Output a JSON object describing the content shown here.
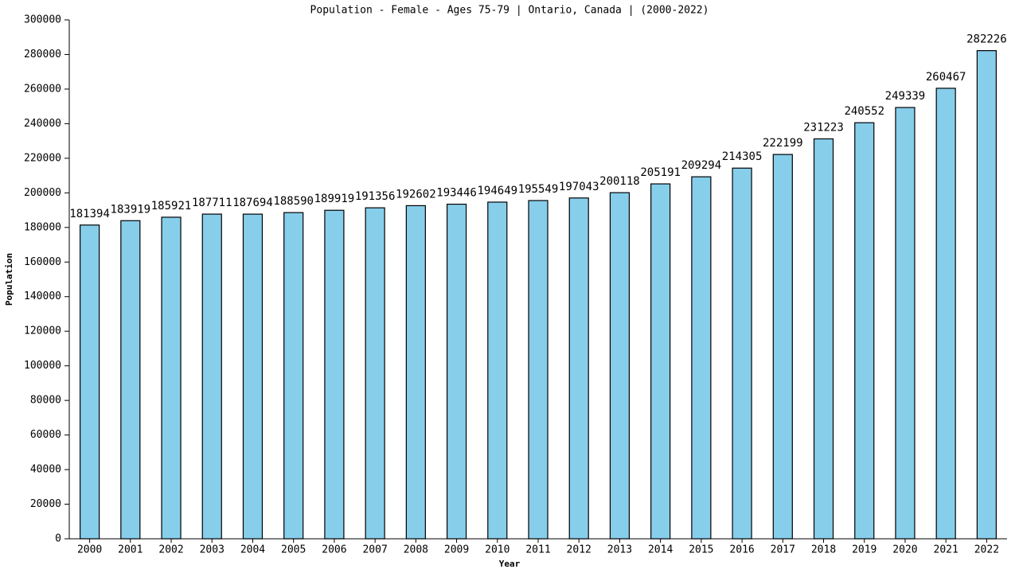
{
  "chart_data": {
    "type": "bar",
    "title": "Population - Female - Ages 75-79 | Ontario, Canada |  (2000-2022)",
    "x_label": "Year",
    "y_label": "Population",
    "categories": [
      "2000",
      "2001",
      "2002",
      "2003",
      "2004",
      "2005",
      "2006",
      "2007",
      "2008",
      "2009",
      "2010",
      "2011",
      "2012",
      "2013",
      "2014",
      "2015",
      "2016",
      "2017",
      "2018",
      "2019",
      "2020",
      "2021",
      "2022"
    ],
    "values": [
      181394,
      183919,
      185921,
      187711,
      187694,
      188590,
      189919,
      191356,
      192602,
      193446,
      194649,
      195549,
      197043,
      200118,
      205191,
      209294,
      214305,
      222199,
      231223,
      240552,
      249339,
      260467,
      282226
    ],
    "color": "#87ceeb",
    "ylim": [
      0,
      300000
    ],
    "yticks": [
      0,
      20000,
      40000,
      60000,
      80000,
      100000,
      120000,
      140000,
      160000,
      180000,
      200000,
      220000,
      240000,
      260000,
      280000,
      300000
    ],
    "grid": false
  }
}
